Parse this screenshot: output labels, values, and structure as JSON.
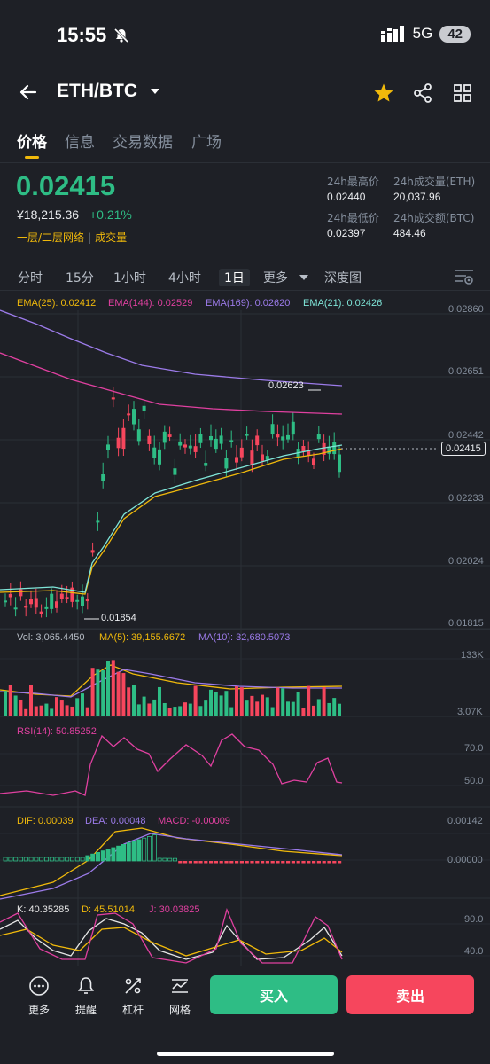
{
  "status": {
    "time": "15:55",
    "network": "5G",
    "battery": "42"
  },
  "header": {
    "pair": "ETH/BTC"
  },
  "tabs": [
    {
      "label": "价格"
    },
    {
      "label": "信息"
    },
    {
      "label": "交易数据"
    },
    {
      "label": "广场"
    }
  ],
  "price": {
    "last": "0.02415",
    "fiat": "¥18,215.36",
    "change": "+0.21%",
    "link1": "一层/二层网络",
    "link2": "成交量"
  },
  "stats": {
    "high_label": "24h最高价",
    "high_value": "0.02440",
    "vol_eth_label": "24h成交量(ETH)",
    "vol_eth_value": "20,037.96",
    "low_label": "24h最低价",
    "low_value": "0.02397",
    "vol_btc_label": "24h成交额(BTC)",
    "vol_btc_value": "484.46"
  },
  "intervals": [
    "分时",
    "15分",
    "1小时",
    "4小时",
    "1日",
    "更多",
    "深度图"
  ],
  "ema_legend": {
    "ema25": "EMA(25): 0.02412",
    "ema144": "EMA(144): 0.02529",
    "ema169": "EMA(169): 0.02620",
    "ema21": "EMA(21): 0.02426"
  },
  "price_axis": [
    "0.02860",
    "0.02651",
    "0.02442",
    "0.02233",
    "0.02024",
    "0.01815"
  ],
  "current_price_tag": "0.02415",
  "annotations": {
    "high": "0.02623",
    "low": "0.01854"
  },
  "volume_legend": {
    "vol": "Vol: 3,065.4450",
    "ma5": "MA(5): 39,155.6672",
    "ma10": "MA(10): 32,680.5073"
  },
  "volume_axis": [
    "133K",
    "3.07K"
  ],
  "rsi_legend": "RSI(14): 50.85252",
  "rsi_axis": [
    "70.0",
    "50.0"
  ],
  "macd_legend": {
    "dif": "DIF: 0.00039",
    "dea": "DEA: 0.00048",
    "macd": "MACD: -0.00009"
  },
  "macd_axis": [
    "0.00142",
    "0.00000"
  ],
  "kdj_legend": {
    "k": "K: 40.35285",
    "d": "D: 45.51014",
    "j": "J: 30.03825"
  },
  "kdj_axis": [
    "90.0",
    "40.0"
  ],
  "bottom": {
    "more": "更多",
    "alert": "提醒",
    "leverage": "杠杆",
    "grid": "网格",
    "buy": "买入",
    "sell": "卖出"
  },
  "colors": {
    "up": "#2ebd85",
    "down": "#f6465d",
    "accent": "#f0b90b"
  }
}
